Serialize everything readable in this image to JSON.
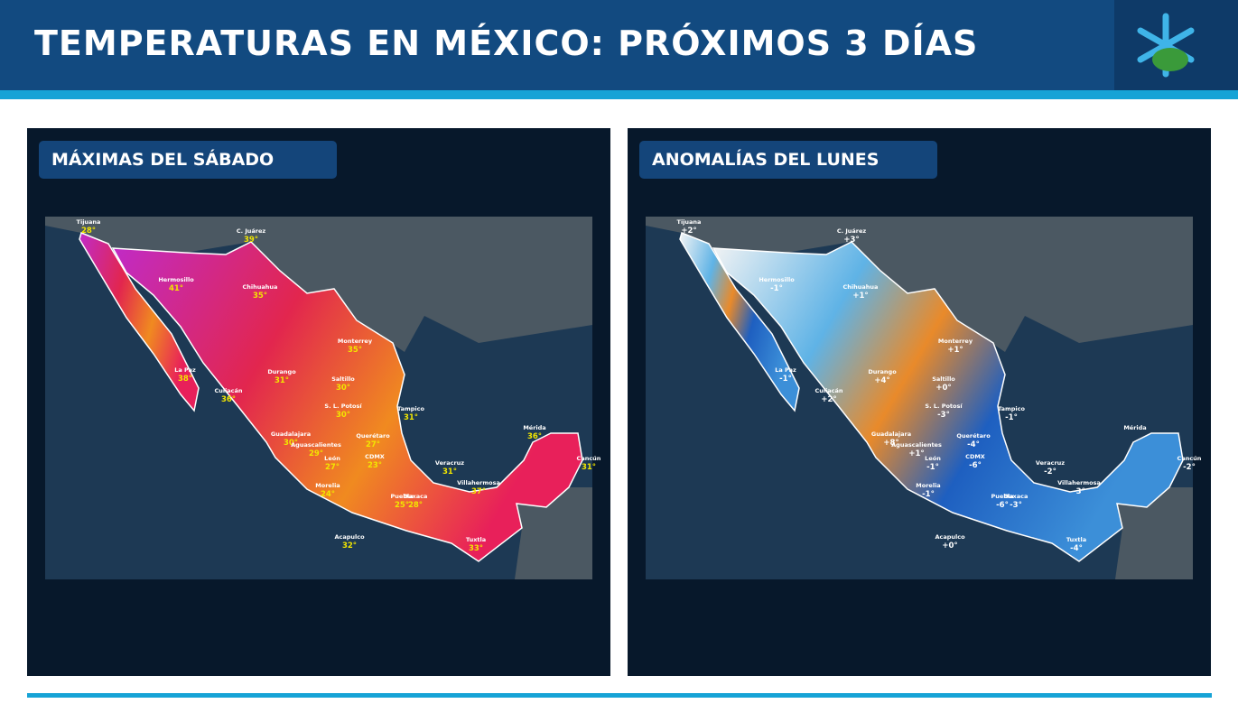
{
  "header": {
    "title": "TEMPERATURAS EN MÉXICO: PRÓXIMOS 3 DÍAS"
  },
  "panels": [
    {
      "title": "MÁXIMAS DEL SÁBADO",
      "cities": [
        {
          "name": "Tijuana",
          "value": "28°"
        },
        {
          "name": "C. Juárez",
          "value": "39°"
        },
        {
          "name": "Hermosillo",
          "value": "41°"
        },
        {
          "name": "Chihuahua",
          "value": "35°"
        },
        {
          "name": "Monterrey",
          "value": "35°"
        },
        {
          "name": "La Paz",
          "value": "38°"
        },
        {
          "name": "Durango",
          "value": "31°"
        },
        {
          "name": "Saltillo",
          "value": "30°"
        },
        {
          "name": "Culiacán",
          "value": "36°"
        },
        {
          "name": "S. L. Potosí",
          "value": "30°"
        },
        {
          "name": "Tampico",
          "value": "31°"
        },
        {
          "name": "Mérida",
          "value": "36°"
        },
        {
          "name": "Guadalajara",
          "value": "30°"
        },
        {
          "name": "Querétaro",
          "value": "27°"
        },
        {
          "name": "Aguascalientes",
          "value": "29°"
        },
        {
          "name": "León",
          "value": "27°"
        },
        {
          "name": "CDMX",
          "value": "23°"
        },
        {
          "name": "Veracruz",
          "value": "31°"
        },
        {
          "name": "Cancún",
          "value": "31°"
        },
        {
          "name": "Villahermosa",
          "value": "37°"
        },
        {
          "name": "Morelia",
          "value": "24°"
        },
        {
          "name": "Puebla",
          "value": "25°"
        },
        {
          "name": "Oaxaca",
          "value": "28°"
        },
        {
          "name": "Acapulco",
          "value": "32°"
        },
        {
          "name": "Tuxtla",
          "value": "33°"
        }
      ]
    },
    {
      "title": "ANOMALÍAS DEL LUNES",
      "cities": [
        {
          "name": "Tijuana",
          "value": "+2°"
        },
        {
          "name": "C. Juárez",
          "value": "+3°"
        },
        {
          "name": "Hermosillo",
          "value": "-1°"
        },
        {
          "name": "Chihuahua",
          "value": "+1°"
        },
        {
          "name": "Monterrey",
          "value": "+1°"
        },
        {
          "name": "La Paz",
          "value": "-1°"
        },
        {
          "name": "Durango",
          "value": "+4°"
        },
        {
          "name": "Saltillo",
          "value": "+0°"
        },
        {
          "name": "Culiacán",
          "value": "+2°"
        },
        {
          "name": "S. L. Potosí",
          "value": "-3°"
        },
        {
          "name": "Tampico",
          "value": "-1°"
        },
        {
          "name": "Mérida"
        },
        {
          "name": "Guadalajara",
          "value": "+8°"
        },
        {
          "name": "Querétaro",
          "value": "-4°"
        },
        {
          "name": "Aguascalientes",
          "value": "+1°"
        },
        {
          "name": "León",
          "value": "-1°"
        },
        {
          "name": "CDMX",
          "value": "-6°"
        },
        {
          "name": "Veracruz",
          "value": "-2°"
        },
        {
          "name": "Cancún",
          "value": "-2°"
        },
        {
          "name": "Villahermosa",
          "value": "-3°"
        },
        {
          "name": "Morelia",
          "value": "-1°"
        },
        {
          "name": "Puebla",
          "value": "-6°"
        },
        {
          "name": "Oaxaca",
          "value": "-3°"
        },
        {
          "name": "Acapulco",
          "value": "+0°"
        },
        {
          "name": "Tuxtla",
          "value": "-4°"
        }
      ]
    }
  ]
}
